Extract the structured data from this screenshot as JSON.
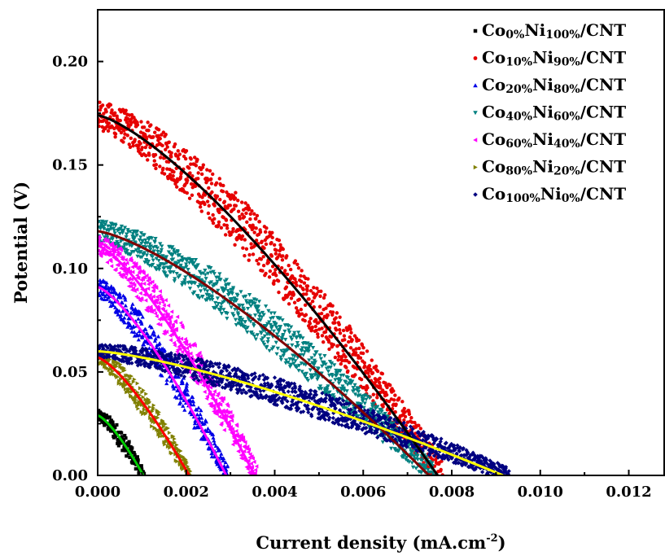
{
  "chart_data": {
    "type": "scatter",
    "xlabel": "Current density (mA.cm",
    "xlabel_sup": "-2",
    "xlabel_close": ")",
    "ylabel": "Potential (V)",
    "xlim": [
      0,
      0.0128
    ],
    "ylim": [
      0,
      0.225
    ],
    "x_ticks": [
      "0.000",
      "0.002",
      "0.004",
      "0.006",
      "0.008",
      "0.010",
      "0.012"
    ],
    "y_ticks": [
      "0.00",
      "0.05",
      "0.10",
      "0.15",
      "0.20"
    ],
    "legend_position": "top-right",
    "series": [
      {
        "co": "0%",
        "ni": "100%",
        "color": "#000000",
        "marker": "square",
        "fit_color": "#00cc00",
        "v0": 0.029,
        "jmax": 0.00105
      },
      {
        "co": "10%",
        "ni": "90%",
        "color": "#e60000",
        "marker": "circle",
        "fit_color": "#000000",
        "v0": 0.174,
        "jmax": 0.0078
      },
      {
        "co": "20%",
        "ni": "80%",
        "color": "#0000e6",
        "marker": "triangle-up",
        "fit_color": "#ff00ff",
        "v0": 0.091,
        "jmax": 0.00295
      },
      {
        "co": "40%",
        "ni": "60%",
        "color": "#008080",
        "marker": "triangle-down",
        "fit_color": "#800000",
        "v0": 0.118,
        "jmax": 0.0076
      },
      {
        "co": "60%",
        "ni": "40%",
        "color": "#ff00ff",
        "marker": "triangle-left",
        "fit_color": "#ff00ff",
        "v0": 0.111,
        "jmax": 0.0036
      },
      {
        "co": "80%",
        "ni": "20%",
        "color": "#808000",
        "marker": "triangle-right",
        "fit_color": "#ff0000",
        "v0": 0.057,
        "jmax": 0.0021
      },
      {
        "co": "100%",
        "ni": "0%",
        "color": "#000080",
        "marker": "diamond",
        "fit_color": "#ffff00",
        "v0": 0.06,
        "jmax": 0.0093
      }
    ]
  }
}
